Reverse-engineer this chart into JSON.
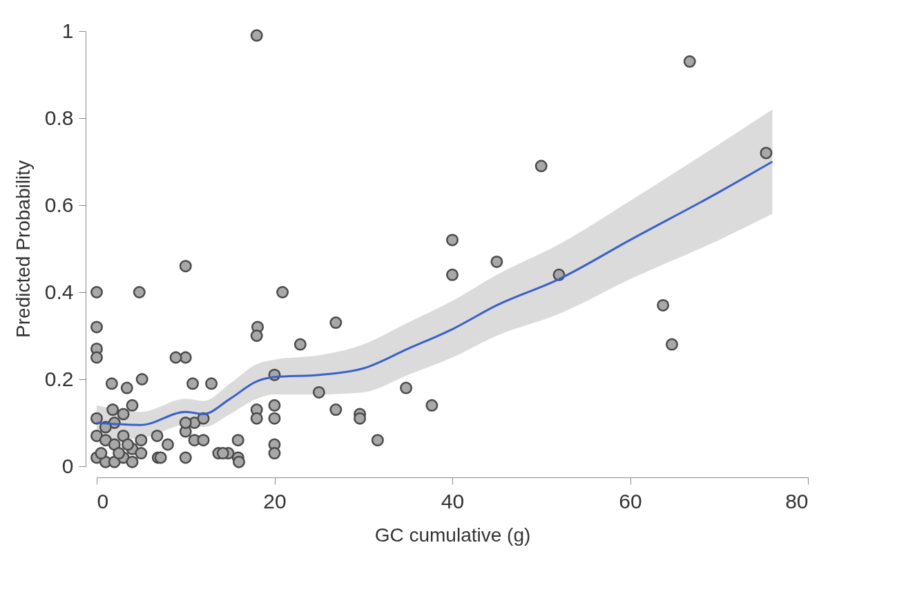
{
  "chart_data": {
    "type": "scatter",
    "xlabel": "GC cumulative (g)",
    "ylabel": "Predicted Probability",
    "xlim": [
      0,
      80
    ],
    "ylim": [
      0,
      1
    ],
    "xticks": [
      0,
      20,
      40,
      60,
      80
    ],
    "yticks": [
      0,
      0.2,
      0.4,
      0.6,
      0.8,
      1
    ],
    "marker": "circle",
    "series": [
      {
        "color": "#a8a8a8",
        "x": [
          18,
          66.7,
          50,
          45,
          75.3,
          63.7,
          64.7,
          40,
          40,
          52,
          37.7,
          34.8,
          31.6,
          29.6,
          29.6,
          26.9,
          26.9,
          25,
          22.9,
          20.9,
          20,
          20,
          20,
          20,
          20,
          18.1,
          18,
          18,
          18,
          15.9,
          15.9,
          14.8,
          13.7,
          12.9,
          10.8,
          10,
          10,
          8.9,
          6.9,
          5.1,
          4.8,
          0,
          0,
          0,
          0,
          1.7,
          3.4,
          0,
          1.8,
          4,
          0,
          1,
          2,
          3,
          4,
          5,
          0,
          1,
          2,
          3,
          4,
          0.5,
          2.5,
          3.5,
          5,
          6.8,
          8,
          11,
          12,
          10,
          11,
          10,
          7.2,
          14.2,
          16,
          10,
          12,
          2,
          3,
          1
        ],
        "values": [
          0.99,
          0.93,
          0.69,
          0.47,
          0.72,
          0.37,
          0.28,
          0.52,
          0.44,
          0.44,
          0.14,
          0.18,
          0.06,
          0.12,
          0.11,
          0.13,
          0.33,
          0.17,
          0.28,
          0.4,
          0.21,
          0.14,
          0.11,
          0.05,
          0.03,
          0.32,
          0.3,
          0.13,
          0.11,
          0.02,
          0.06,
          0.03,
          0.03,
          0.19,
          0.19,
          0.46,
          0.25,
          0.25,
          0.02,
          0.2,
          0.4,
          0.4,
          0.32,
          0.27,
          0.25,
          0.19,
          0.18,
          0.11,
          0.13,
          0.14,
          0.07,
          0.06,
          0.05,
          0.07,
          0.04,
          0.06,
          0.02,
          0.01,
          0.01,
          0.02,
          0.01,
          0.03,
          0.03,
          0.05,
          0.03,
          0.07,
          0.05,
          0.1,
          0.11,
          0.08,
          0.06,
          0.02,
          0.02,
          0.03,
          0.01,
          0.1,
          0.06,
          0.1,
          0.12,
          0.09
        ]
      },
      {
        "type": "line",
        "color": "#3a5fcd",
        "line_style": "solid",
        "marker": "none",
        "x": [
          0,
          5,
          10,
          12,
          15,
          18,
          20,
          25,
          30,
          35,
          40,
          45,
          52,
          60,
          70,
          76
        ],
        "values": [
          0.1,
          0.095,
          0.125,
          0.12,
          0.155,
          0.195,
          0.205,
          0.21,
          0.225,
          0.27,
          0.315,
          0.37,
          0.43,
          0.52,
          0.63,
          0.7
        ],
        "lower": [
          0.06,
          0.065,
          0.095,
          0.09,
          0.12,
          0.155,
          0.165,
          0.165,
          0.17,
          0.21,
          0.25,
          0.3,
          0.35,
          0.43,
          0.52,
          0.58
        ],
        "upper": [
          0.14,
          0.125,
          0.155,
          0.15,
          0.19,
          0.235,
          0.245,
          0.255,
          0.28,
          0.33,
          0.38,
          0.44,
          0.51,
          0.61,
          0.74,
          0.82
        ]
      }
    ]
  }
}
